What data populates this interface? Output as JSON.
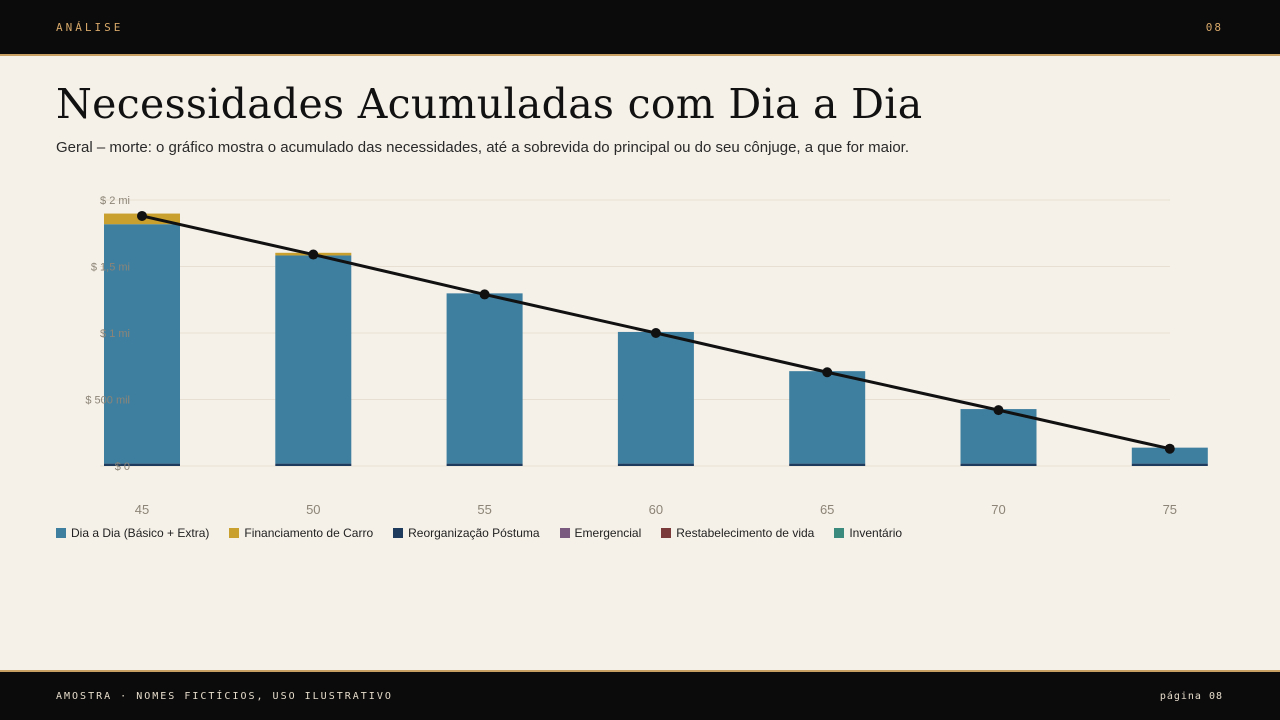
{
  "header": {
    "section": "ANÁLISE",
    "number": "08"
  },
  "title": "Necessidades Acumuladas com Dia a Dia",
  "subtitle": "Geral – morte: o gráfico mostra o acumulado das necessidades, até a sobrevida do principal ou do seu cônjuge, a que for maior.",
  "footer": {
    "note": "AMOSTRA · NOMES FICTÍCIOS, USO ILUSTRATIVO",
    "page": "página 08"
  },
  "colors": {
    "dia_a_dia": "#3e7fa0",
    "financiamento": "#c9a02e",
    "reorganizacao": "#1e3a5c",
    "emergencial": "#7a5a7e",
    "restabelecimento": "#7a3a3a",
    "inventario": "#3a8a7e",
    "line": "#111111",
    "grid": "#e6dfd2"
  },
  "chart_data": {
    "type": "bar",
    "stacked": true,
    "categories": [
      "45",
      "50",
      "55",
      "60",
      "65",
      "70",
      "75"
    ],
    "ylim": [
      0,
      2000000
    ],
    "yticks": [
      {
        "value": 0,
        "label": "$ 0"
      },
      {
        "value": 500000,
        "label": "$ 500 mil"
      },
      {
        "value": 1000000,
        "label": "$ 1 mi"
      },
      {
        "value": 1500000,
        "label": "$ 1,5 mi"
      },
      {
        "value": 2000000,
        "label": "$ 2 mi"
      }
    ],
    "grid": true,
    "legend_position": "bottom-left",
    "series": [
      {
        "name": "Dia a Dia (Básico + Extra)",
        "color_key": "dia_a_dia",
        "values": [
          1800000,
          1565000,
          1280000,
          990000,
          695000,
          410000,
          120000
        ]
      },
      {
        "name": "Financiamento de Carro",
        "color_key": "financiamento",
        "values": [
          80000,
          20000,
          0,
          0,
          0,
          0,
          0
        ]
      },
      {
        "name": "Reorganização Póstuma",
        "color_key": "reorganizacao",
        "values": [
          18000,
          18000,
          18000,
          18000,
          18000,
          18000,
          18000
        ]
      },
      {
        "name": "Emergencial",
        "color_key": "emergencial",
        "values": [
          0,
          0,
          0,
          0,
          0,
          0,
          0
        ]
      },
      {
        "name": "Restabelecimento de vida",
        "color_key": "restabelecimento",
        "values": [
          0,
          0,
          0,
          0,
          0,
          0,
          0
        ]
      },
      {
        "name": "Inventário",
        "color_key": "inventario",
        "values": [
          0,
          0,
          0,
          0,
          0,
          0,
          0
        ]
      }
    ],
    "line": {
      "color_key": "line",
      "values": [
        1880000,
        1590000,
        1290000,
        1000000,
        705000,
        420000,
        130000
      ]
    }
  }
}
